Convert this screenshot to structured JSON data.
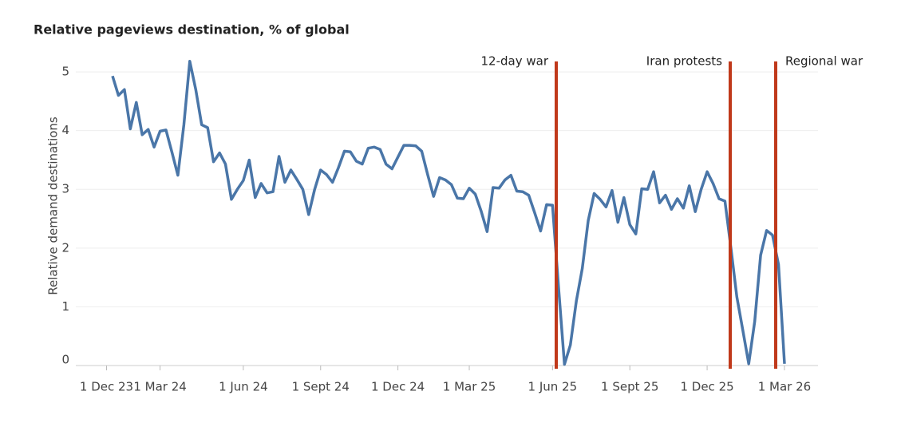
{
  "chart_data": {
    "type": "line",
    "title": "Relative pageviews destination, % of global",
    "y_label": "Relative demand destinations",
    "categories": [
      "1 Dec 23",
      null,
      null,
      null,
      null,
      null,
      null,
      null,
      null,
      "1 Mar 24",
      null,
      null,
      null,
      null,
      null,
      null,
      null,
      null,
      null,
      null,
      null,
      null,
      null,
      "1 Jun 24",
      null,
      null,
      null,
      null,
      null,
      null,
      null,
      null,
      null,
      null,
      null,
      null,
      "1 Sept 24",
      null,
      null,
      null,
      null,
      null,
      null,
      null,
      null,
      null,
      null,
      null,
      null,
      "1 Dec 24",
      null,
      null,
      null,
      null,
      null,
      null,
      null,
      null,
      null,
      null,
      null,
      "1 Mar 25",
      null,
      null,
      null,
      null,
      null,
      null,
      null,
      null,
      null,
      null,
      null,
      null,
      null,
      "1 Jun 25",
      null,
      null,
      null,
      null,
      null,
      null,
      null,
      null,
      null,
      null,
      null,
      null,
      "1 Sept 25",
      null,
      null,
      null,
      null,
      null,
      null,
      null,
      null,
      null,
      null,
      null,
      null,
      "1 Dec 25",
      null,
      null,
      null,
      null,
      null,
      null,
      null,
      null,
      null,
      null,
      null,
      null,
      "1 Mar 26"
    ],
    "series": [
      {
        "name": "Relative pageviews destination",
        "color": "#4a76a8",
        "values": [
          null,
          4.93,
          4.6,
          4.7,
          4.03,
          4.48,
          3.93,
          4.02,
          3.72,
          3.99,
          4.01,
          3.63,
          3.24,
          4.1,
          5.18,
          4.7,
          4.1,
          4.05,
          3.47,
          3.62,
          3.43,
          2.83,
          3.0,
          3.15,
          3.5,
          2.86,
          3.1,
          2.94,
          2.96,
          3.56,
          3.12,
          3.33,
          3.17,
          3.0,
          2.57,
          3.0,
          3.33,
          3.25,
          3.12,
          3.37,
          3.65,
          3.64,
          3.48,
          3.43,
          3.7,
          3.72,
          3.68,
          3.43,
          3.35,
          3.55,
          3.75,
          3.75,
          3.74,
          3.65,
          3.25,
          2.88,
          3.2,
          3.16,
          3.08,
          2.85,
          2.84,
          3.02,
          2.92,
          2.63,
          2.28,
          3.03,
          3.02,
          3.16,
          3.24,
          2.97,
          2.96,
          2.9,
          2.6,
          2.29,
          2.74,
          2.73,
          1.35,
          0.02,
          0.35,
          1.1,
          1.65,
          2.47,
          2.93,
          2.83,
          2.7,
          2.98,
          2.44,
          2.86,
          2.4,
          2.24,
          3.01,
          3.0,
          3.3,
          2.77,
          2.9,
          2.66,
          2.84,
          2.68,
          3.06,
          2.62,
          3.0,
          3.3,
          3.1,
          2.84,
          2.8,
          2.0,
          1.17,
          0.6,
          0.03,
          0.75,
          1.88,
          2.3,
          2.22,
          1.72,
          0.03
        ]
      }
    ],
    "ylim": [
      0,
      5.3
    ],
    "yticks": [
      0,
      1,
      2,
      3,
      4,
      5
    ],
    "grid": true,
    "annotations": [
      {
        "label": "12-day war",
        "color": "#c0391b"
      },
      {
        "label": "Iran protests",
        "color": "#c0391b"
      },
      {
        "label": "Regional war",
        "color": "#c0391b"
      }
    ]
  }
}
